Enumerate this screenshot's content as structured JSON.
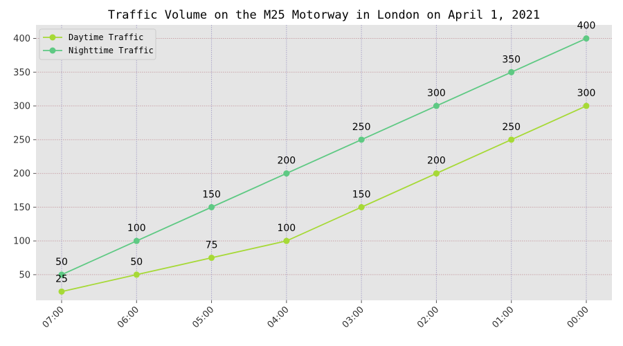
{
  "chart_data": {
    "type": "line",
    "title": "Traffic Volume on the M25 Motorway in London on April 1, 2021",
    "xlabel": "",
    "ylabel": "",
    "categories": [
      "07:00",
      "06:00",
      "05:00",
      "04:00",
      "03:00",
      "02:00",
      "01:00",
      "00:00"
    ],
    "series": [
      {
        "name": "Daytime Traffic",
        "values": [
          25,
          50,
          75,
          100,
          150,
          200,
          250,
          300
        ],
        "color": "#a6d936"
      },
      {
        "name": "Nighttime Traffic",
        "values": [
          50,
          100,
          150,
          200,
          250,
          300,
          350,
          400
        ],
        "color": "#5ec983"
      }
    ],
    "ylim": [
      12,
      420
    ],
    "yticks": [
      50,
      100,
      150,
      200,
      250,
      300,
      350,
      400
    ],
    "grid": true,
    "legend_position": "top-left",
    "colors": {
      "plot_background": "#e5e5e5",
      "horizontal_grid": "#c9a3a8",
      "vertical_grid": "#a9a3c8"
    }
  }
}
